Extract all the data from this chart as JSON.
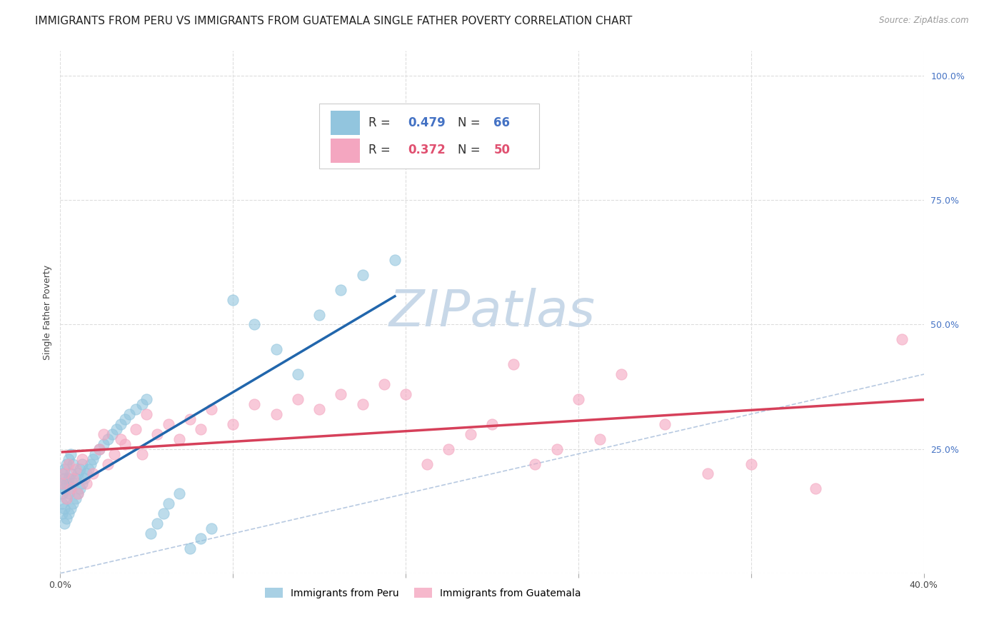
{
  "title": "IMMIGRANTS FROM PERU VS IMMIGRANTS FROM GUATEMALA SINGLE FATHER POVERTY CORRELATION CHART",
  "source": "Source: ZipAtlas.com",
  "ylabel": "Single Father Poverty",
  "xlim": [
    0.0,
    0.4
  ],
  "ylim": [
    0.0,
    1.05
  ],
  "xtick_positions": [
    0.0,
    0.08,
    0.16,
    0.24,
    0.32,
    0.4
  ],
  "xticklabels": [
    "0.0%",
    "",
    "",
    "",
    "",
    "40.0%"
  ],
  "ytick_positions": [
    0.0,
    0.25,
    0.5,
    0.75,
    1.0
  ],
  "yticklabels_right": [
    "",
    "25.0%",
    "50.0%",
    "75.0%",
    "100.0%"
  ],
  "peru_R": 0.479,
  "peru_N": 66,
  "guatemala_R": 0.372,
  "guatemala_N": 50,
  "peru_color": "#92c5de",
  "guatemala_color": "#f4a6c0",
  "trend_line_color_peru": "#2166ac",
  "trend_line_color_guatemala": "#d6405a",
  "diagonal_color": "#b0c4de",
  "background_color": "#ffffff",
  "grid_color": "#dddddd",
  "title_fontsize": 11,
  "axis_label_fontsize": 9,
  "tick_fontsize": 9,
  "right_tick_color": "#4472c4",
  "legend_fontsize": 12,
  "watermark_text": "ZIPatlas",
  "watermark_color": "#c8d8e8",
  "peru_x": [
    0.001,
    0.001,
    0.001,
    0.001,
    0.001,
    0.002,
    0.002,
    0.002,
    0.002,
    0.002,
    0.003,
    0.003,
    0.003,
    0.003,
    0.004,
    0.004,
    0.004,
    0.004,
    0.005,
    0.005,
    0.005,
    0.005,
    0.006,
    0.006,
    0.006,
    0.007,
    0.007,
    0.008,
    0.008,
    0.009,
    0.009,
    0.01,
    0.01,
    0.011,
    0.012,
    0.013,
    0.014,
    0.015,
    0.016,
    0.018,
    0.02,
    0.022,
    0.024,
    0.026,
    0.028,
    0.03,
    0.032,
    0.035,
    0.038,
    0.04,
    0.042,
    0.045,
    0.048,
    0.05,
    0.055,
    0.06,
    0.065,
    0.07,
    0.08,
    0.09,
    0.1,
    0.11,
    0.12,
    0.13,
    0.14,
    0.155
  ],
  "peru_y": [
    0.12,
    0.14,
    0.16,
    0.18,
    0.2,
    0.1,
    0.13,
    0.17,
    0.19,
    0.21,
    0.11,
    0.15,
    0.18,
    0.22,
    0.12,
    0.16,
    0.19,
    0.23,
    0.13,
    0.17,
    0.2,
    0.24,
    0.14,
    0.18,
    0.22,
    0.15,
    0.19,
    0.16,
    0.2,
    0.17,
    0.21,
    0.18,
    0.22,
    0.19,
    0.2,
    0.21,
    0.22,
    0.23,
    0.24,
    0.25,
    0.26,
    0.27,
    0.28,
    0.29,
    0.3,
    0.31,
    0.32,
    0.33,
    0.34,
    0.35,
    0.08,
    0.1,
    0.12,
    0.14,
    0.16,
    0.05,
    0.07,
    0.09,
    0.55,
    0.5,
    0.45,
    0.4,
    0.52,
    0.57,
    0.6,
    0.63
  ],
  "guatemala_x": [
    0.001,
    0.002,
    0.003,
    0.004,
    0.005,
    0.006,
    0.007,
    0.008,
    0.01,
    0.012,
    0.015,
    0.018,
    0.02,
    0.022,
    0.025,
    0.028,
    0.03,
    0.035,
    0.038,
    0.04,
    0.045,
    0.05,
    0.055,
    0.06,
    0.065,
    0.07,
    0.08,
    0.09,
    0.1,
    0.11,
    0.12,
    0.13,
    0.14,
    0.15,
    0.16,
    0.17,
    0.18,
    0.19,
    0.2,
    0.21,
    0.22,
    0.23,
    0.24,
    0.25,
    0.26,
    0.28,
    0.3,
    0.32,
    0.35,
    0.39
  ],
  "guatemala_y": [
    0.18,
    0.2,
    0.15,
    0.22,
    0.17,
    0.19,
    0.21,
    0.16,
    0.23,
    0.18,
    0.2,
    0.25,
    0.28,
    0.22,
    0.24,
    0.27,
    0.26,
    0.29,
    0.24,
    0.32,
    0.28,
    0.3,
    0.27,
    0.31,
    0.29,
    0.33,
    0.3,
    0.34,
    0.32,
    0.35,
    0.33,
    0.36,
    0.34,
    0.38,
    0.36,
    0.22,
    0.25,
    0.28,
    0.3,
    0.42,
    0.22,
    0.25,
    0.35,
    0.27,
    0.4,
    0.3,
    0.2,
    0.22,
    0.17,
    0.47
  ]
}
